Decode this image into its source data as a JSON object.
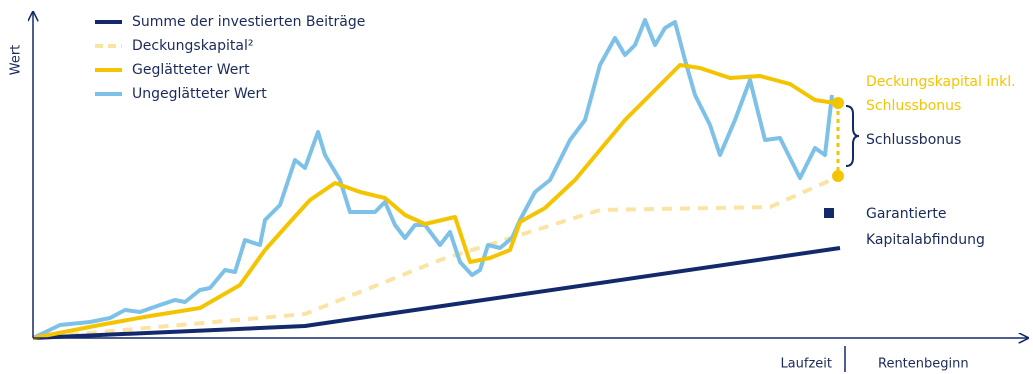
{
  "chart_data": {
    "type": "line",
    "y_label": "Wert",
    "x_label": "Laufzeit",
    "x_end_label": "Rentenbeginn",
    "xlim": [
      0,
      807
    ],
    "ylim": [
      0,
      320
    ],
    "annotations": {
      "final_value": [
        "Deckungskapital inkl.",
        "Schlussbonus"
      ],
      "bonus": "Schlussbonus",
      "guaranteed": [
        "Garantierte",
        "Kapitalabfindung"
      ]
    },
    "series": [
      {
        "name": "Summe der investierten Beiträge",
        "color": "#13296b",
        "dashed": false,
        "x": [
          0,
          272,
          807
        ],
        "values": [
          0,
          12,
          90
        ]
      },
      {
        "name": "Deckungskapital²",
        "color": "#fbe4a3",
        "dashed": true,
        "x": [
          0,
          272,
          407,
          567,
          737,
          807
        ],
        "values": [
          0,
          24,
          78,
          128,
          131,
          162
        ]
      },
      {
        "name": "Geglätteter Wert",
        "color": "#f5c400",
        "dashed": false,
        "x": [
          0,
          67,
          117,
          167,
          207,
          232,
          257,
          277,
          302,
          327,
          352,
          372,
          392,
          422,
          437,
          457,
          477,
          487,
          512,
          542,
          567,
          592,
          622,
          647,
          667,
          697,
          727,
          757,
          782,
          802
        ],
        "values": [
          0,
          13,
          22,
          30,
          53,
          88,
          116,
          138,
          155,
          146,
          140,
          123,
          114,
          121,
          76,
          80,
          88,
          116,
          130,
          158,
          188,
          218,
          248,
          273,
          270,
          260,
          262,
          254,
          238,
          235
        ]
      },
      {
        "name": "Ungeglätteter Wert",
        "color": "#7dc1e8",
        "dashed": false,
        "x": [
          0,
          27,
          57,
          77,
          92,
          107,
          127,
          142,
          152,
          167,
          177,
          192,
          202,
          212,
          227,
          232,
          247,
          262,
          272,
          285,
          292,
          307,
          317,
          342,
          352,
          362,
          372,
          382,
          392,
          407,
          417,
          427,
          439,
          447,
          455,
          467,
          479,
          487,
          502,
          517,
          537,
          552,
          567,
          582,
          592,
          602,
          612,
          622,
          632,
          642,
          652,
          662,
          677,
          687,
          702,
          717,
          732,
          747,
          767,
          782,
          792,
          799
        ],
        "values": [
          0,
          13,
          16,
          20,
          28,
          26,
          33,
          38,
          36,
          48,
          50,
          68,
          66,
          98,
          93,
          118,
          133,
          178,
          170,
          206,
          183,
          158,
          126,
          126,
          136,
          113,
          100,
          113,
          113,
          93,
          106,
          76,
          63,
          68,
          93,
          90,
          100,
          118,
          146,
          158,
          198,
          218,
          273,
          300,
          283,
          293,
          318,
          293,
          310,
          316,
          278,
          243,
          213,
          183,
          218,
          258,
          198,
          200,
          160,
          190,
          183,
          243
        ]
      }
    ]
  }
}
